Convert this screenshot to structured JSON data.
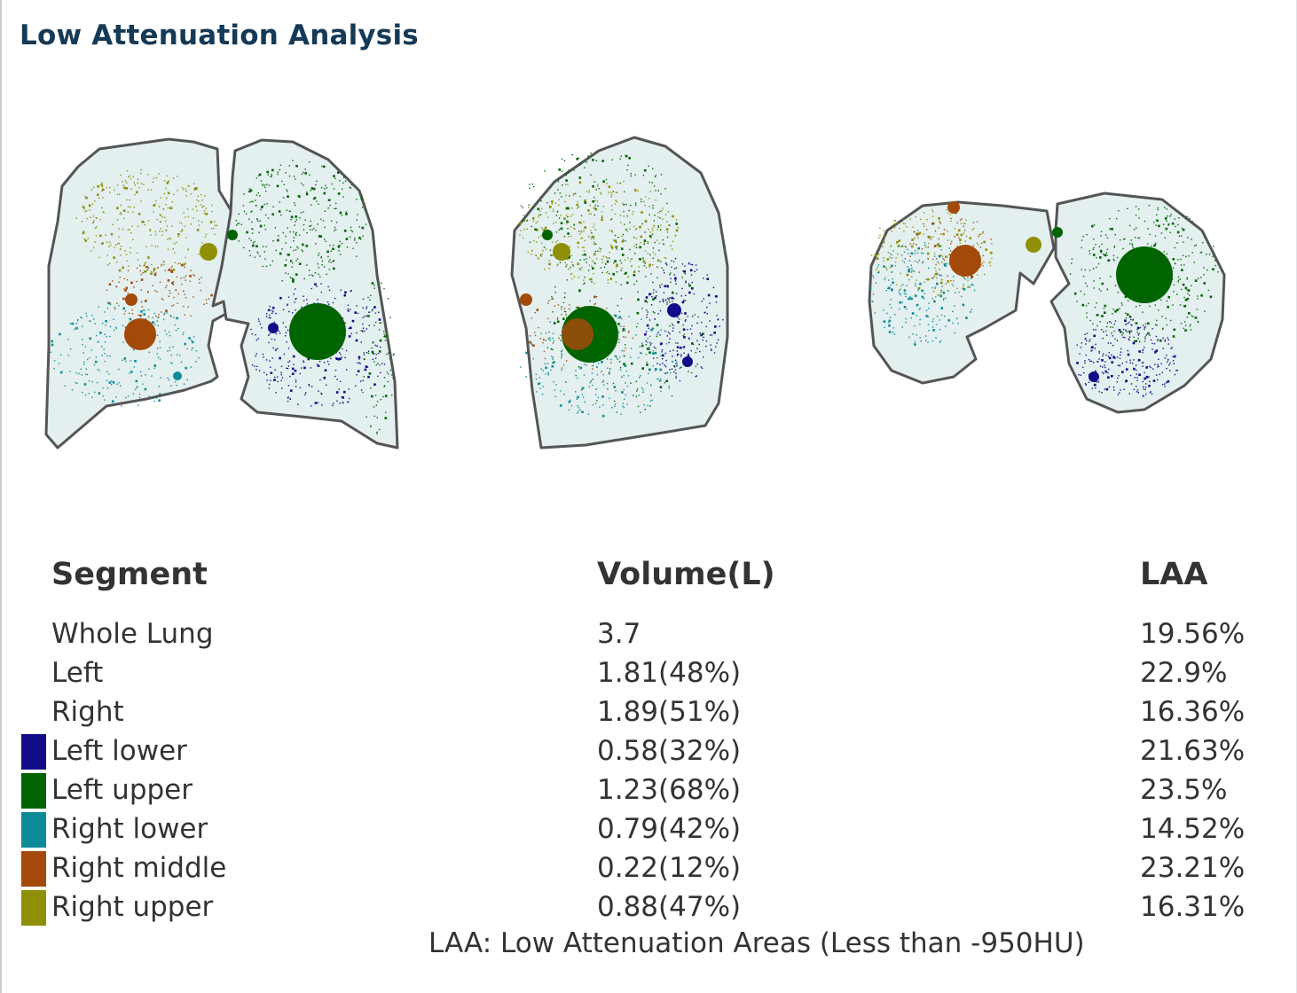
{
  "title": "Low Attenuation Analysis",
  "colors": {
    "left_lower": "#130c8a",
    "left_upper": "#006400",
    "right_lower": "#0e8b99",
    "right_middle": "#a34a0a",
    "right_upper": "#8f8f08",
    "lung_fill": "#e3f0ef",
    "lung_outline": "#555555"
  },
  "views": [
    {
      "name": "coronal"
    },
    {
      "name": "sagittal"
    },
    {
      "name": "axial"
    }
  ],
  "table": {
    "headers": {
      "segment": "Segment",
      "volume": "Volume(L)",
      "laa": "LAA"
    },
    "rows": [
      {
        "segment": "Whole Lung",
        "volume": "3.7",
        "laa": "19.56%",
        "color": ""
      },
      {
        "segment": "Left",
        "volume": "1.81(48%)",
        "laa": "22.9%",
        "color": ""
      },
      {
        "segment": "Right",
        "volume": "1.89(51%)",
        "laa": "16.36%",
        "color": ""
      },
      {
        "segment": "Left lower",
        "volume": "0.58(32%)",
        "laa": "21.63%",
        "color": "#130c8a"
      },
      {
        "segment": "Left upper",
        "volume": "1.23(68%)",
        "laa": "23.5%",
        "color": "#006400"
      },
      {
        "segment": "Right lower",
        "volume": "0.79(42%)",
        "laa": "14.52%",
        "color": "#0e8b99"
      },
      {
        "segment": "Right middle",
        "volume": "0.22(12%)",
        "laa": "23.21%",
        "color": "#a34a0a"
      },
      {
        "segment": "Right upper",
        "volume": "0.88(47%)",
        "laa": "16.31%",
        "color": "#8f8f08"
      }
    ]
  },
  "footnote": "LAA: Low Attenuation Areas (Less than -950HU)"
}
